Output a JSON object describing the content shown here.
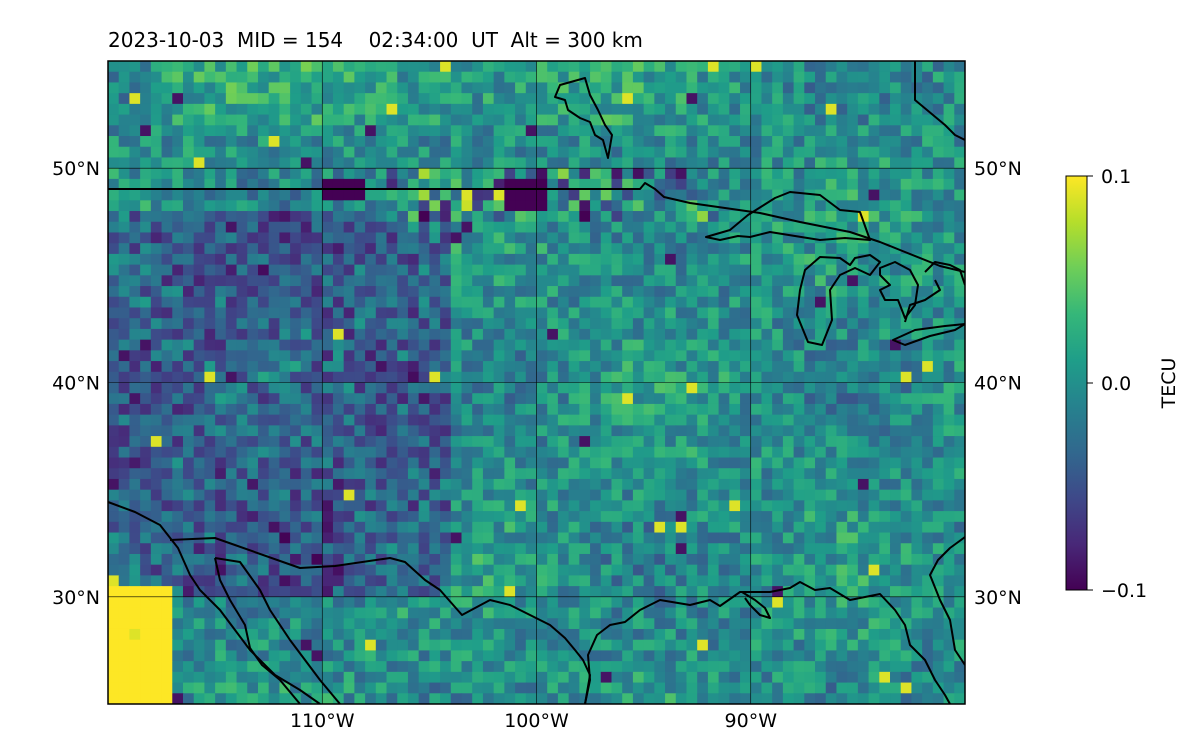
{
  "title": "2023-10-03  MID = 154    02:34:00  UT  Alt = 300 km",
  "chart_data": {
    "type": "heatmap",
    "title": "2023-10-03  MID = 154    02:34:00  UT  Alt = 300 km",
    "projection": "Plate Carree map",
    "lon_range": [
      -120,
      -80
    ],
    "lat_range": [
      25,
      55
    ],
    "xticks": [
      {
        "value": -110,
        "label": "110°W"
      },
      {
        "value": -100,
        "label": "100°W"
      },
      {
        "value": -90,
        "label": "90°W"
      }
    ],
    "yticks": [
      {
        "value": 50,
        "label": "50°N"
      },
      {
        "value": 40,
        "label": "40°N"
      },
      {
        "value": 30,
        "label": "30°N"
      }
    ],
    "grid": true,
    "colormap": "viridis",
    "colorbar": {
      "label": "TECU",
      "range": [
        -0.1,
        0.1
      ],
      "ticks": [
        {
          "value": 0.1,
          "label": "0.1"
        },
        {
          "value": 0.0,
          "label": "0.0"
        },
        {
          "value": -0.1,
          "label": "−0.1"
        }
      ]
    },
    "features": {
      "strong_positive_patch": "0.1 (saturated) near 29°N 117°W",
      "strong_negative_band": "−0.1 along 49°N between 106°W and 100°W",
      "background": "mostly −0.03 to 0.03"
    }
  },
  "colors": {
    "viridis": [
      "#440154",
      "#482878",
      "#3e4989",
      "#31688e",
      "#26828e",
      "#1f9e89",
      "#35b779",
      "#6ece58",
      "#b5de2b",
      "#fde725"
    ],
    "coastline": "#000000",
    "grid": "#000000"
  }
}
